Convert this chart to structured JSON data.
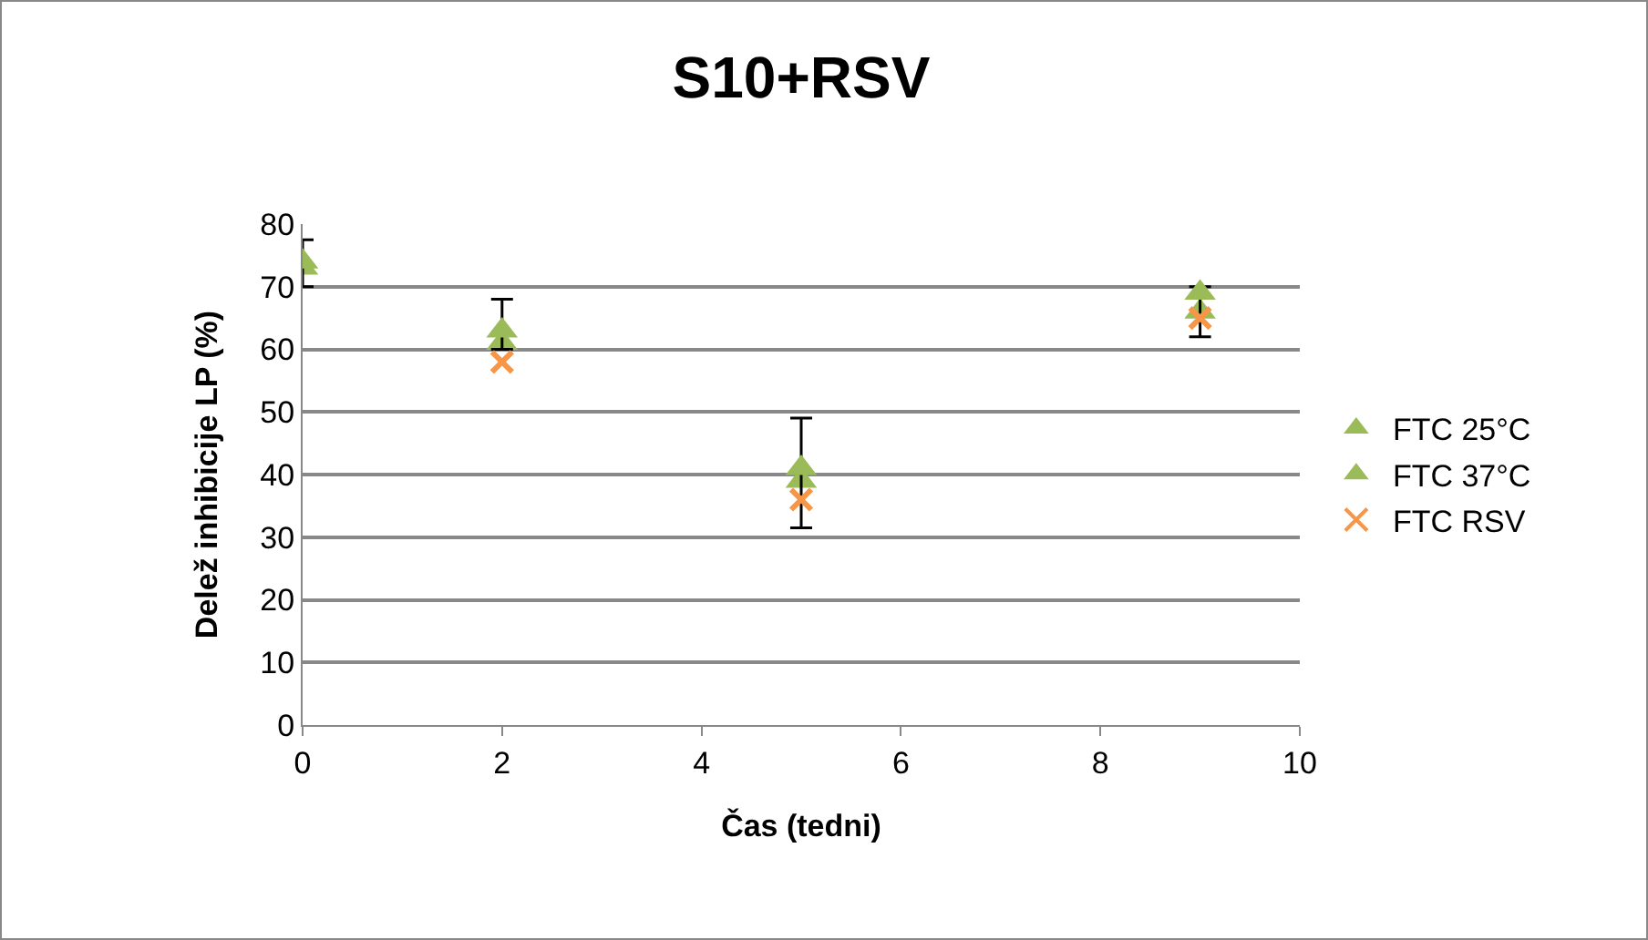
{
  "chart_data": {
    "type": "scatter",
    "title": "S10+RSV",
    "xlabel": "Čas (tedni)",
    "ylabel": "Delež inhibicije LP (%)",
    "x": [
      0,
      2,
      5,
      9
    ],
    "xlim": [
      0,
      10
    ],
    "xticks": [
      0,
      2,
      4,
      6,
      8,
      10
    ],
    "ylim": [
      0,
      80
    ],
    "yticks": [
      0,
      10,
      20,
      30,
      40,
      50,
      60,
      70,
      80
    ],
    "grid": "y",
    "legend": "right",
    "marker": "triangle",
    "series": [
      {
        "name": "FTC 25°C",
        "color": "#9bbb59",
        "values": [
          73,
          61,
          39,
          66
        ]
      },
      {
        "name": "FTC 37°C",
        "color": "#9bbb59",
        "values": [
          74,
          63,
          41,
          69
        ],
        "errors": [
          [
            70,
            77.5
          ],
          [
            60,
            68
          ],
          [
            31.5,
            49
          ],
          [
            62,
            70
          ]
        ]
      },
      {
        "name": "FTC RSV",
        "color": "#f79646",
        "marker": "cross",
        "values": [
          null,
          58,
          36,
          65
        ]
      }
    ]
  }
}
